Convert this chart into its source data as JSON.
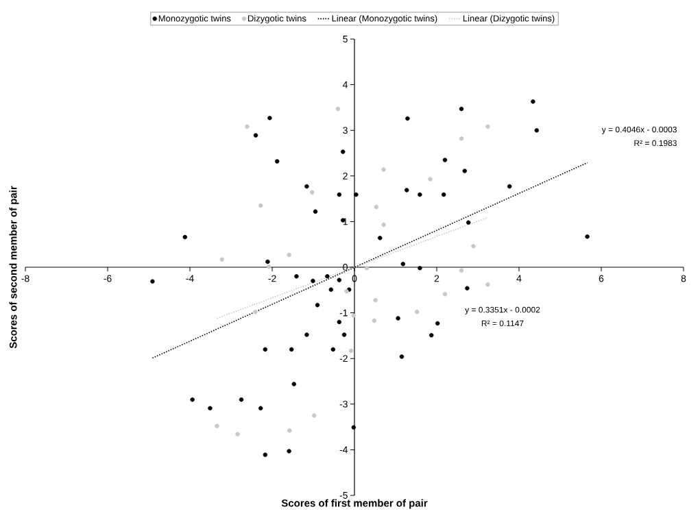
{
  "chart_data": {
    "type": "scatter",
    "xlabel": "Scores of first member of pair",
    "ylabel": "Scores of second member of pair",
    "xlim": [
      -8,
      8
    ],
    "xticks": [
      -8,
      -6,
      -4,
      -2,
      0,
      2,
      4,
      6,
      8
    ],
    "ylim": [
      -5,
      5
    ],
    "yticks": [
      -5,
      -4,
      -3,
      -2,
      -1,
      0,
      1,
      2,
      3,
      4,
      5
    ],
    "legend": "top",
    "annotations": [
      "y = 0.4046x - 0.0003",
      "R² = 0.1983",
      "y = 0.3351x - 0.0002",
      "R² = 0.1147"
    ],
    "series": [
      {
        "name": "Monozygotic twins",
        "marker": "circle",
        "color": "#000000",
        "x": [
          -2.06,
          -2.4,
          -1.88,
          -0.28,
          -1.16,
          -0.37,
          -0.95,
          -0.28,
          -4.12,
          -2.11,
          0.04,
          1.29,
          2.6,
          4.34,
          4.43,
          2.2,
          2.68,
          1.27,
          1.59,
          2.17,
          3.77,
          2.77,
          0.62,
          5.66,
          1.18,
          1.59,
          -4.91,
          -1.41,
          -1.01,
          -0.66,
          -0.37,
          -0.57,
          -0.13,
          -0.9,
          -0.37,
          -1.16,
          -0.25,
          -2.17,
          -1.53,
          -0.52,
          -1.47,
          -3.94,
          -2.75,
          -3.51,
          -2.28,
          -0.02,
          -2.17,
          -1.59,
          2.74,
          1.06,
          2.02,
          1.87,
          1.15
        ],
        "values": [
          3.27,
          2.89,
          2.32,
          2.53,
          1.77,
          1.59,
          1.22,
          1.03,
          0.66,
          0.12,
          1.59,
          3.26,
          3.47,
          3.63,
          3.0,
          2.35,
          2.11,
          1.69,
          1.59,
          1.59,
          1.77,
          0.98,
          0.64,
          0.67,
          0.07,
          -0.02,
          -0.31,
          -0.2,
          -0.3,
          -0.2,
          -0.28,
          -0.49,
          -0.49,
          -0.83,
          -1.2,
          -1.48,
          -1.48,
          -1.8,
          -1.8,
          -1.8,
          -2.56,
          -2.9,
          -2.9,
          -3.09,
          -3.09,
          -3.51,
          -4.11,
          -4.03,
          -0.46,
          -1.12,
          -1.23,
          -1.49,
          -1.96
        ]
      },
      {
        "name": "Dizygotic twins",
        "marker": "circle",
        "color": "#c8c8c8",
        "x": [
          -0.4,
          -2.61,
          -1.03,
          -2.28,
          -3.22,
          -1.59,
          -2.08,
          3.24,
          2.6,
          0.71,
          1.84,
          0.53,
          0.71,
          2.89,
          0.3,
          2.6,
          -0.19,
          -0.02,
          -2.41,
          -0.08,
          -0.98,
          -3.34,
          -2.84,
          -1.58,
          3.24,
          2.2,
          0.51,
          1.52,
          0.48
        ],
        "values": [
          3.47,
          3.08,
          1.64,
          1.35,
          0.17,
          0.27,
          0.01,
          3.08,
          2.82,
          2.14,
          1.93,
          1.32,
          0.93,
          0.46,
          -0.02,
          -0.07,
          -0.53,
          -1.06,
          -0.98,
          -1.83,
          -3.25,
          -3.48,
          -3.66,
          -3.58,
          -0.38,
          -0.59,
          -0.72,
          -0.98,
          -1.17
        ]
      },
      {
        "name": "Linear (Monozygotic twins)",
        "type": "line",
        "line_style": "dotted",
        "marker": "none",
        "color": "#000000",
        "x": [
          -4.91,
          5.66
        ],
        "values": [
          -1.99,
          2.29
        ]
      },
      {
        "name": "Linear (Dizygotic twins)",
        "type": "line",
        "line_style": "dotted",
        "marker": "none",
        "color": "#c8c8c8",
        "x": [
          -3.34,
          3.24
        ],
        "values": [
          -1.12,
          1.09
        ]
      }
    ]
  }
}
